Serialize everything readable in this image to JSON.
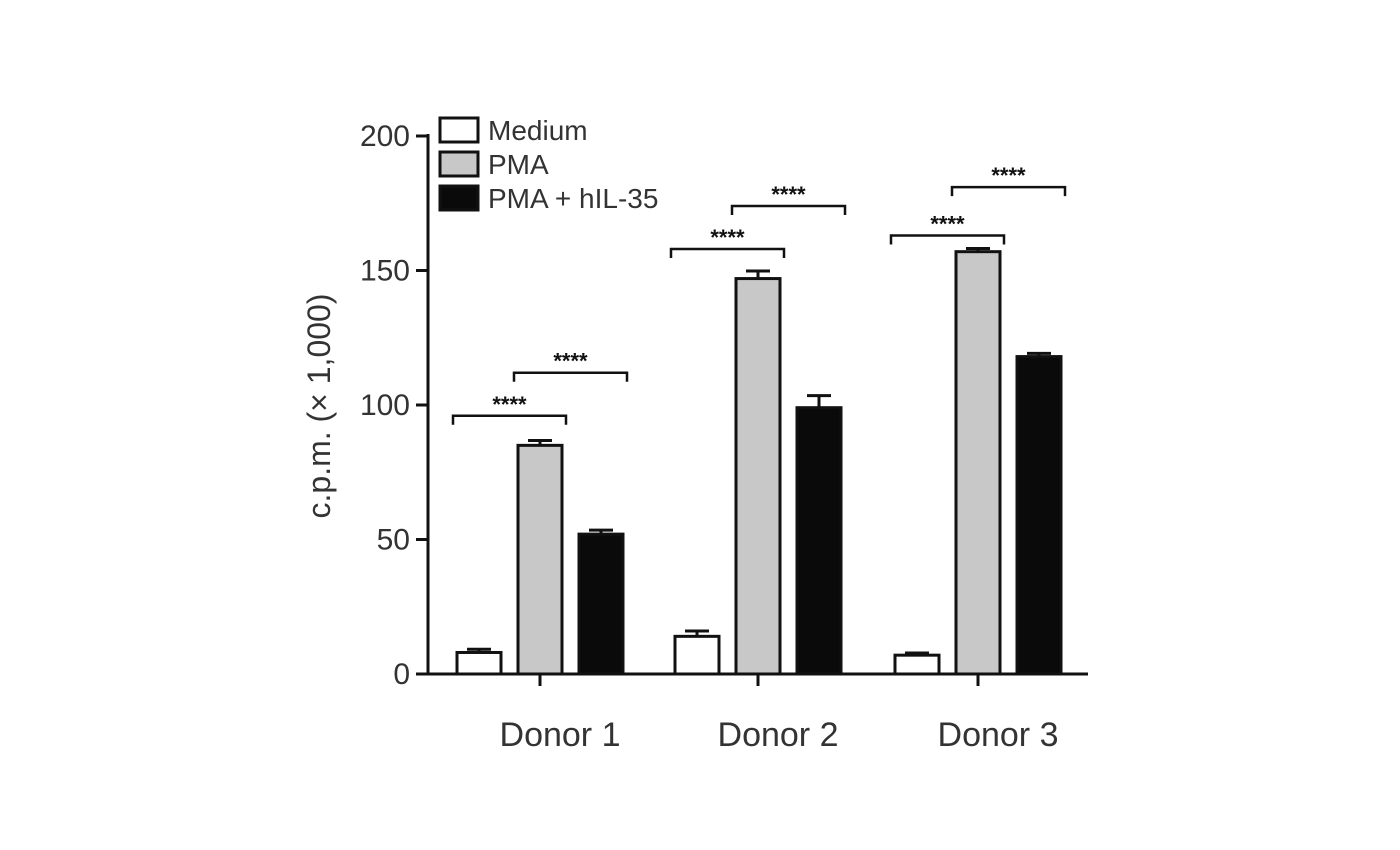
{
  "chart_data": {
    "type": "bar",
    "title": "",
    "xlabel": "",
    "ylabel": "c.p.m. (× 1,000)",
    "ylim": [
      0,
      200
    ],
    "yticks": [
      0,
      50,
      100,
      150,
      200
    ],
    "categories": [
      "Donor 1",
      "Donor 2",
      "Donor 3"
    ],
    "legend_position": "top-left",
    "grid": false,
    "series": [
      {
        "name": "Medium",
        "color": "#ffffff",
        "values": [
          8,
          14,
          7
        ],
        "errors": [
          1.2,
          2.0,
          0.8
        ]
      },
      {
        "name": "PMA",
        "color": "#c8c8c8",
        "values": [
          85,
          147,
          157
        ],
        "errors": [
          1.8,
          2.8,
          1.2
        ]
      },
      {
        "name": "PMA + hIL-35",
        "color": "#0a0a0a",
        "values": [
          52,
          99,
          118
        ],
        "errors": [
          1.5,
          4.5,
          1.2
        ]
      }
    ],
    "annotations": [
      {
        "category": 0,
        "from": 0,
        "to": 1,
        "y": 96,
        "text": "****"
      },
      {
        "category": 0,
        "from": 1,
        "to": 2,
        "y": 112,
        "text": "****"
      },
      {
        "category": 1,
        "from": 0,
        "to": 1,
        "y": 158,
        "text": "****"
      },
      {
        "category": 1,
        "from": 1,
        "to": 2,
        "y": 174,
        "text": "****"
      },
      {
        "category": 2,
        "from": 0,
        "to": 1,
        "y": 163,
        "text": "****"
      },
      {
        "category": 2,
        "from": 1,
        "to": 2,
        "y": 181,
        "text": "****"
      }
    ]
  }
}
